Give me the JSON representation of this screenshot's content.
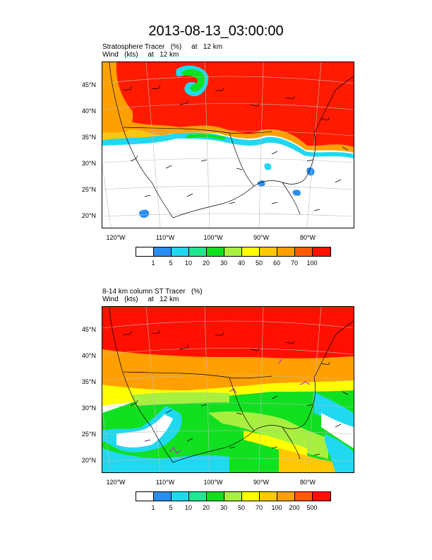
{
  "title": "2013-08-13_03:00:00",
  "panels": [
    {
      "line1": "Stratosphere Tracer   (%)     at   12 km",
      "line2": "Wind   (kts)     at   12 km",
      "lat_labels": [
        "45°N",
        "40°N",
        "35°N",
        "30°N",
        "25°N",
        "20°N"
      ],
      "lon_labels": [
        "120°W",
        "110°W",
        "100°W",
        "90°W",
        "80°W"
      ],
      "colorbar": {
        "colors": [
          "#ffffff",
          "#2a8ef0",
          "#20d8f0",
          "#20e890",
          "#10e020",
          "#a8f040",
          "#ffff00",
          "#ffc800",
          "#ffa000",
          "#ff5a00",
          "#ff1000"
        ],
        "labels": [
          "1",
          "5",
          "10",
          "20",
          "30",
          "40",
          "50",
          "60",
          "70",
          "100"
        ]
      }
    },
    {
      "line1": "8-14 km column ST Tracer   (%)",
      "line2": "Wind   (kts)     at   12 km",
      "lat_labels": [
        "45°N",
        "40°N",
        "35°N",
        "30°N",
        "25°N",
        "20°N"
      ],
      "lon_labels": [
        "120°W",
        "110°W",
        "100°W",
        "90°W",
        "80°W"
      ],
      "colorbar": {
        "colors": [
          "#ffffff",
          "#2a8ef0",
          "#20d8f0",
          "#20e890",
          "#10e020",
          "#a8f040",
          "#ffff00",
          "#ffc800",
          "#ffa000",
          "#ff5a00",
          "#ff1000"
        ],
        "labels": [
          "1",
          "5",
          "10",
          "20",
          "30",
          "50",
          "70",
          "100",
          "200",
          "500"
        ]
      }
    }
  ]
}
